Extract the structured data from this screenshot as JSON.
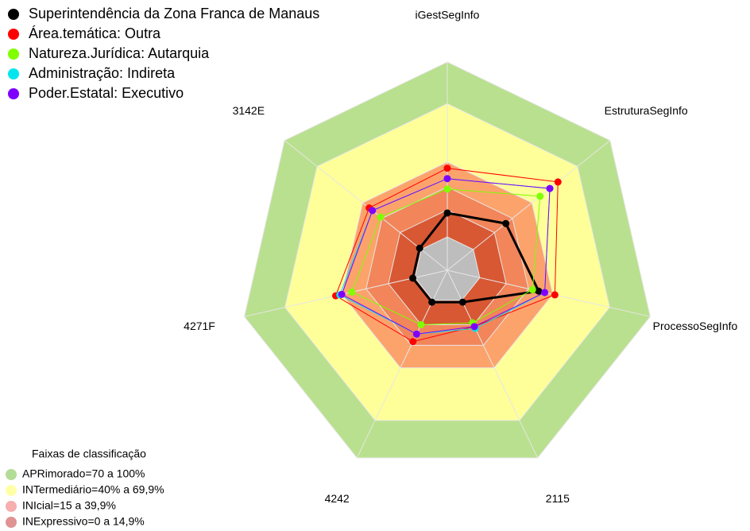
{
  "chart_data": {
    "type": "radar",
    "categories": [
      "iGestSegInfo",
      "EstruturaSegInfo",
      "ProcessoSegInfo",
      "2115",
      "4242",
      "4271F",
      "3142E"
    ],
    "series": [
      {
        "name": "Superintendência da Zona Franca de Manaus",
        "color": "#000000",
        "values": [
          27.5,
          36,
          45,
          17,
          17,
          17,
          17
        ]
      },
      {
        "name": "Área.temática: Outra",
        "color": "#ff0000",
        "values": [
          49,
          68,
          53,
          30,
          38,
          55,
          48
        ]
      },
      {
        "name": "Natureza.Jurídica: Autarquia",
        "color": "#7fff00",
        "values": [
          39,
          57,
          42,
          28,
          29,
          47,
          41
        ]
      },
      {
        "name": "Administração: Indireta",
        "color": "#00e5ee",
        "values": [
          44,
          63,
          48,
          31,
          34,
          53,
          46
        ]
      },
      {
        "name": "Poder.Estatal: Executivo",
        "color": "#7f00ff",
        "values": [
          44,
          63,
          48,
          30,
          34,
          52,
          46
        ]
      }
    ],
    "ylim": [
      0,
      100
    ],
    "bands": [
      {
        "value": 100,
        "color": "#b9e08e"
      },
      {
        "value": 80,
        "color": "#ffff99"
      },
      {
        "value": 52,
        "color": "#fca36c"
      },
      {
        "value": 40,
        "color": "#f2855a"
      },
      {
        "value": 29,
        "color": "#d85834"
      },
      {
        "value": 16,
        "color": "#bdbdbd"
      }
    ],
    "band_legend": {
      "title": "Faixas de classificação",
      "items": [
        {
          "label": "APRimorado=70 a 100%",
          "color": "#a6d785"
        },
        {
          "label": "INTermediário=40% a 69,9%",
          "color": "#ffff99"
        },
        {
          "label": "INIcial=15 a 39,9%",
          "color": "#f4a0a0"
        },
        {
          "label": "INExpressivo=0 a 14,9%",
          "color": "#d98080"
        }
      ]
    }
  }
}
